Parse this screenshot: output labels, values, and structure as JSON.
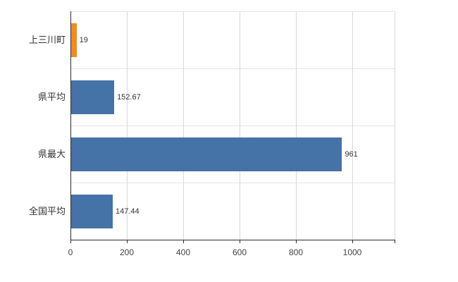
{
  "chart_data": {
    "type": "bar",
    "orientation": "horizontal",
    "title": "",
    "xlabel": "",
    "ylabel": "",
    "categories": [
      "上三川町",
      "県平均",
      "県最大",
      "全国平均"
    ],
    "values": [
      19,
      152.67,
      961,
      147.44
    ],
    "value_labels": [
      "19",
      "152.67",
      "961",
      "147.44"
    ],
    "bar_colors": [
      "#ef8b22",
      "#4572a7",
      "#4572a7",
      "#4572a7"
    ],
    "highlight_color": "#ef8b22",
    "series_color": "#4572a7",
    "xlim": [
      0,
      1150
    ],
    "xticks": [
      0,
      200,
      400,
      600,
      800,
      1000
    ],
    "xtick_labels": [
      "0",
      "200",
      "400",
      "600",
      "800",
      "1000"
    ],
    "grid": true,
    "legend": "none",
    "background_color": "#ffffff",
    "gridline_color": "#d8d8d8",
    "axis_color": "#2b2b2b"
  }
}
